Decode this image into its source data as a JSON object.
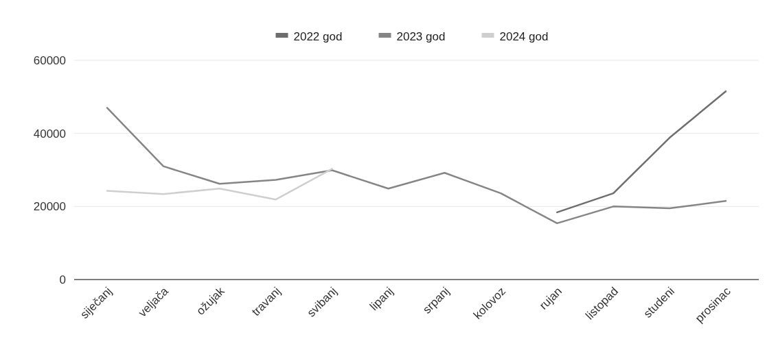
{
  "chart_data": {
    "type": "line",
    "categories": [
      "siječanj",
      "veljača",
      "ožujak",
      "travanj",
      "svibanj",
      "lipanj",
      "srpanj",
      "kolovoz",
      "rujan",
      "listopad",
      "studeni",
      "prosinac"
    ],
    "series": [
      {
        "name": "2022 god",
        "color": "#6e6e6e",
        "values": [
          null,
          null,
          null,
          null,
          null,
          null,
          null,
          null,
          18400,
          23600,
          38800,
          51500
        ]
      },
      {
        "name": "2023 god",
        "color": "#858585",
        "values": [
          47000,
          31000,
          26200,
          27300,
          29900,
          24900,
          29200,
          23600,
          15400,
          20000,
          19500,
          21500
        ]
      },
      {
        "name": "2024 god",
        "color": "#cfcfcf",
        "values": [
          24300,
          23400,
          24900,
          21900,
          30300,
          null,
          null,
          null,
          null,
          null,
          null,
          null
        ]
      }
    ],
    "ylim": [
      0,
      60000
    ],
    "yticks": [
      0,
      20000,
      40000,
      60000
    ],
    "grid": "y",
    "legend": "top",
    "line_style": "solid",
    "marker": "none"
  }
}
